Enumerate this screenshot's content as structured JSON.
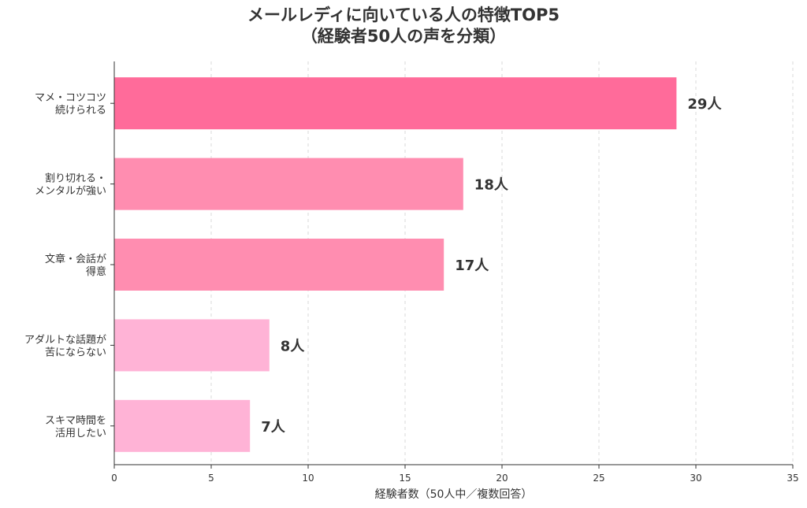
{
  "chart_data": {
    "type": "bar",
    "orientation": "horizontal",
    "title_lines": [
      "メールレディに向いている人の特徴TOP5",
      "（経験者50人の声を分類）"
    ],
    "xlabel": "経験者数（50人中／複数回答）",
    "ylabel": "",
    "xlim": [
      0,
      35
    ],
    "xticks": [
      0,
      5,
      10,
      15,
      20,
      25,
      30,
      35
    ],
    "grid": "vertical-dashed",
    "categories": [
      [
        "マメ・コツコツ",
        "続けられる"
      ],
      [
        "割り切れる・",
        "メンタルが強い"
      ],
      [
        "文章・会話が",
        "得意"
      ],
      [
        "アダルトな話題が",
        "苦にならない"
      ],
      [
        "スキマ時間を",
        "活用したい"
      ]
    ],
    "values": [
      29,
      18,
      17,
      8,
      7
    ],
    "value_labels": [
      "29人",
      "18人",
      "17人",
      "8人",
      "7人"
    ],
    "colors": [
      "#ff6b9a",
      "#ff8db0",
      "#ff8db0",
      "#ffb3d6",
      "#ffb3d6"
    ]
  }
}
